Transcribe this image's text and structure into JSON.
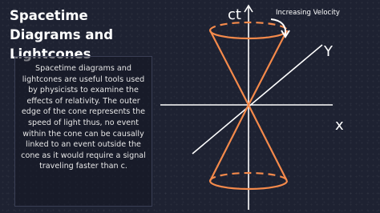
{
  "header": {
    "title": "Spacetime Diagrams and Lightcones"
  },
  "body": {
    "text": "Spacetime diagrams and lightcones are useful tools used by physicists to examine the effects of relativity. The outer edge of the cone represents the speed of light thus, no event within the cone can be causally linked to an event outside the cone as it would require a signal traveling faster than c."
  },
  "diagram": {
    "time_axis": "ct",
    "y_axis": "Y",
    "x_axis": "x",
    "annotation": "Increasing Velocity"
  }
}
